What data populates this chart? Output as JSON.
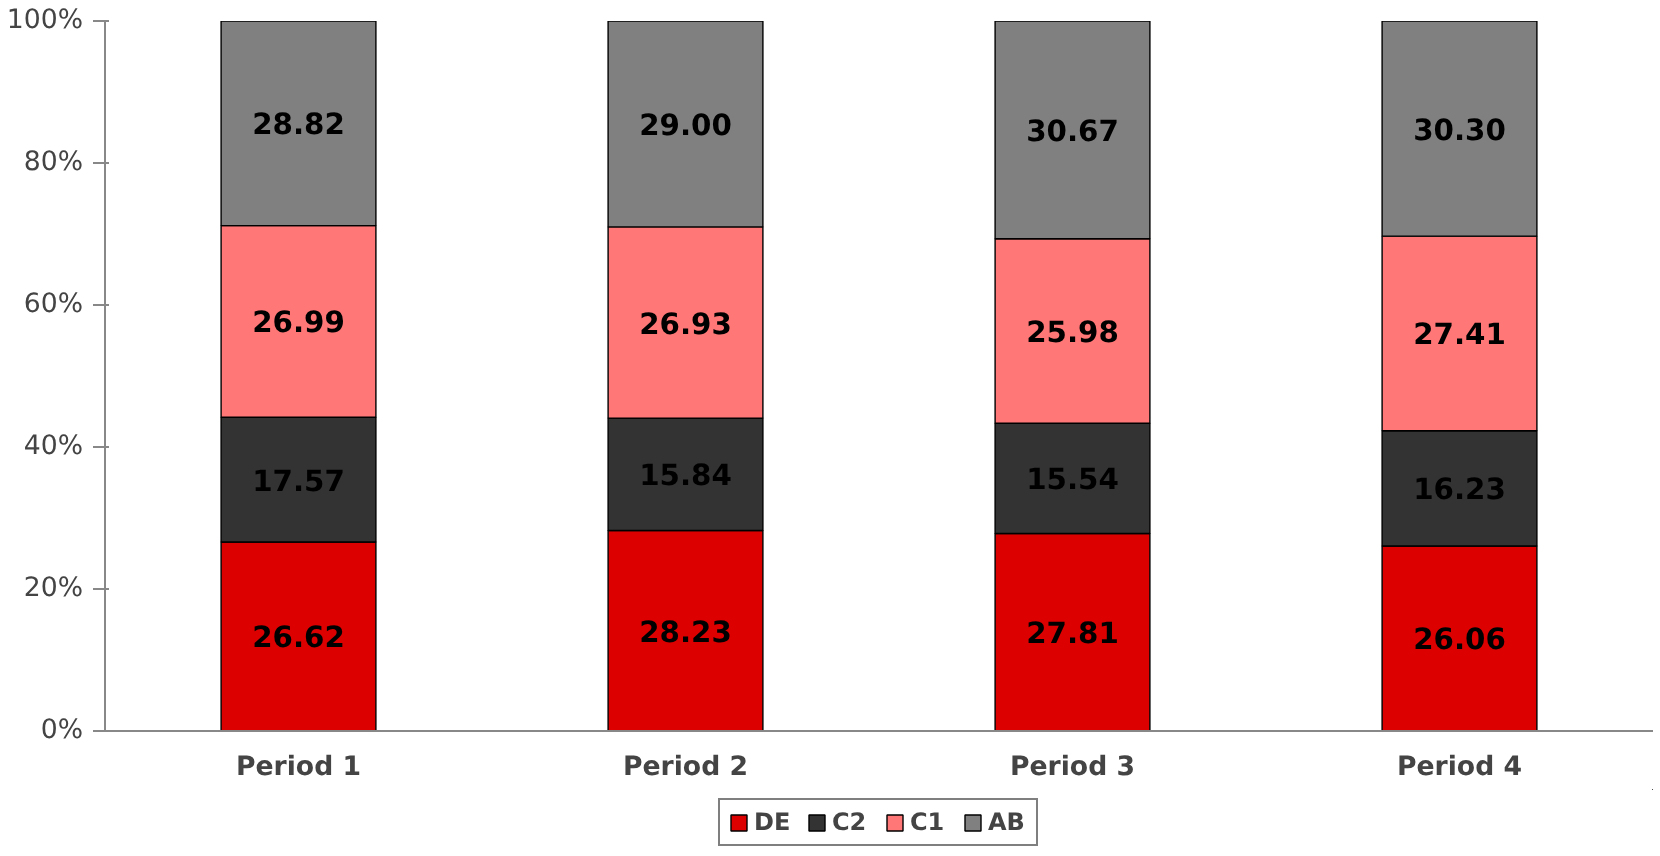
{
  "chart_data": {
    "type": "bar",
    "stacked": true,
    "categories": [
      "Period 1",
      "Period 2",
      "Period 3",
      "Period 4"
    ],
    "series": [
      {
        "name": "DE",
        "color": "#dd0000",
        "values": [
          26.62,
          28.23,
          27.81,
          26.06
        ],
        "value_labels": [
          "26.62",
          "28.23",
          "27.81",
          "26.06"
        ]
      },
      {
        "name": "C2",
        "color": "#333333",
        "values": [
          17.57,
          15.84,
          15.54,
          16.23
        ],
        "value_labels": [
          "17.57",
          "15.84",
          "15.54",
          "16.23"
        ]
      },
      {
        "name": "C1",
        "color": "#ff7777",
        "values": [
          26.99,
          26.93,
          25.98,
          27.41
        ],
        "value_labels": [
          "26.99",
          "26.93",
          "25.98",
          "27.41"
        ]
      },
      {
        "name": "AB",
        "color": "#808080",
        "values": [
          28.82,
          29.0,
          30.67,
          30.3
        ],
        "value_labels": [
          "28.82",
          "29.00",
          "30.67",
          "30.30"
        ]
      }
    ],
    "ylim": [
      0,
      100
    ],
    "yticks": [
      {
        "value": 0,
        "label": "0%"
      },
      {
        "value": 20,
        "label": "20%"
      },
      {
        "value": 40,
        "label": "40%"
      },
      {
        "value": 60,
        "label": "60%"
      },
      {
        "value": 80,
        "label": "80%"
      },
      {
        "value": 100,
        "label": "100%"
      }
    ],
    "legend": "bottom",
    "grid": false
  }
}
